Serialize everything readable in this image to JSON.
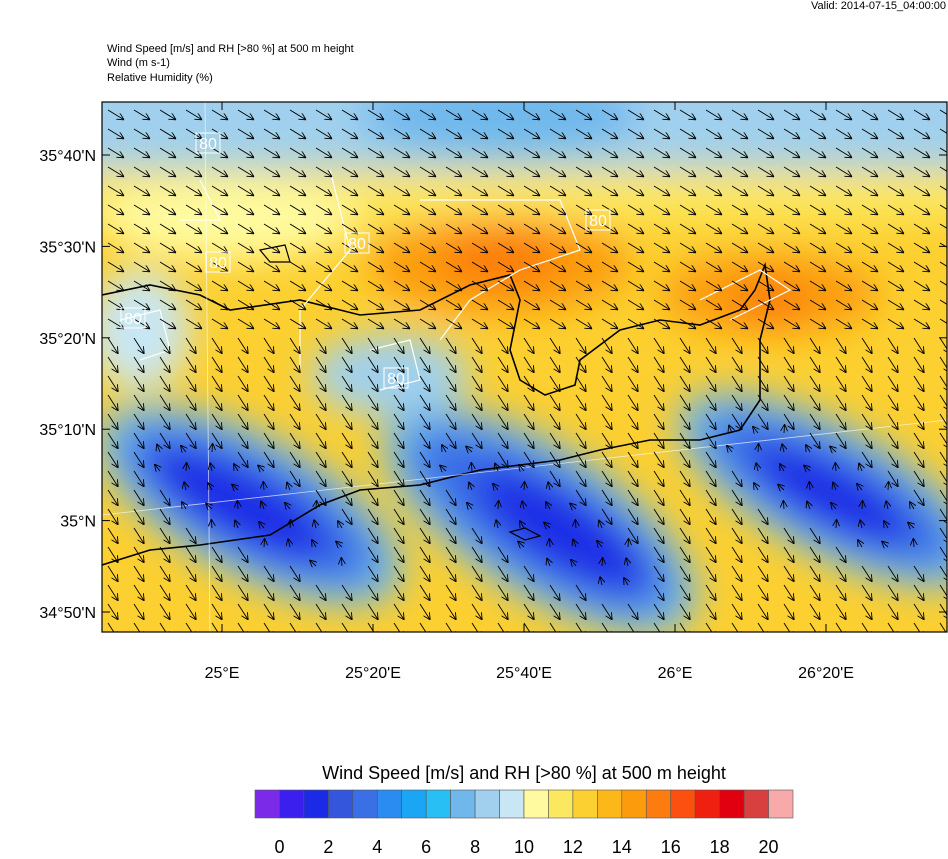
{
  "header": {
    "valid": "Valid: 2014-07-15_04:00:00",
    "lines": [
      "Wind Speed [m/s] and RH [>80 %] at 500 m height",
      "Wind   (m s-1)",
      "Relative Humidity   (%)"
    ]
  },
  "map": {
    "y_labels": [
      "35°40'N",
      "35°30'N",
      "35°20'N",
      "35°10'N",
      "35°N",
      "34°50'N"
    ],
    "x_labels": [
      "25°E",
      "25°20'E",
      "25°40'E",
      "26°E",
      "26°20'E"
    ],
    "contour_labels": [
      "80",
      "80",
      "80",
      "80",
      "80",
      "80"
    ]
  },
  "colorbar": {
    "title": "Wind Speed [m/s] and RH [>80 %] at 500 m height",
    "colors": [
      "#7b2be8",
      "#3b1fee",
      "#1a2ae6",
      "#3456dc",
      "#3a6fe6",
      "#2a8cf0",
      "#1aa6f4",
      "#28c0f4",
      "#70b8ec",
      "#a0d0ee",
      "#c8e6f4",
      "#fffaa0",
      "#fce860",
      "#fcd030",
      "#fcb818",
      "#fc9c0c",
      "#fc7c10",
      "#fc5010",
      "#f02010",
      "#e00010",
      "#d84040",
      "#f8aaaa"
    ],
    "ticks": [
      0,
      2,
      4,
      6,
      8,
      10,
      12,
      14,
      16,
      18,
      20
    ]
  }
}
